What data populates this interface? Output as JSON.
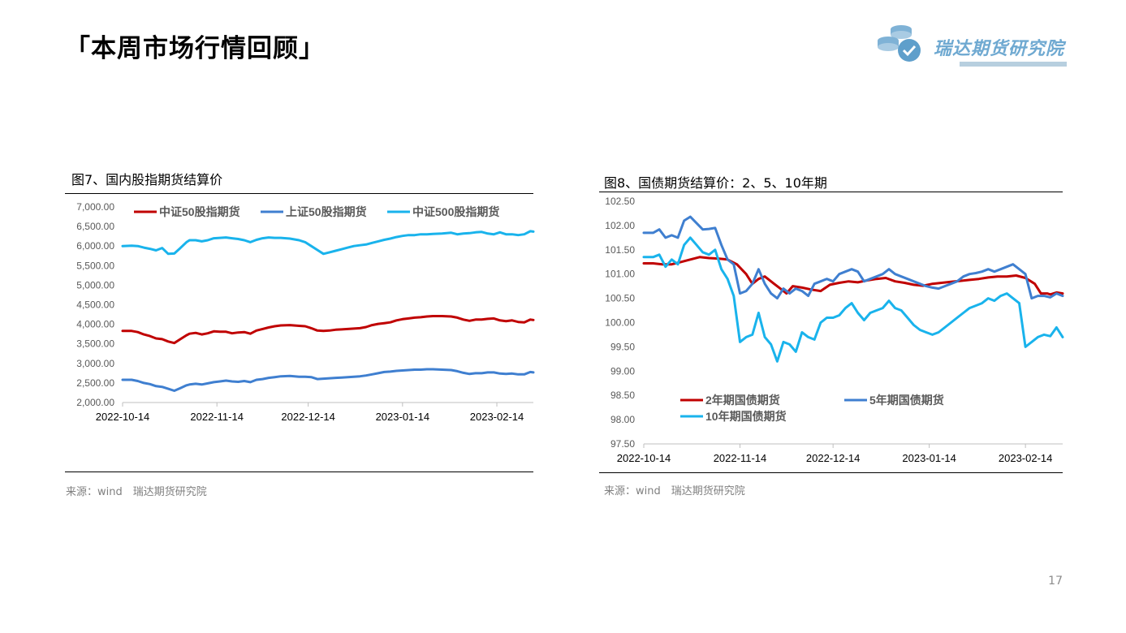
{
  "header": {
    "title": "「本周市场行情回顾」",
    "logo_text": "瑞达期货研究院"
  },
  "page_number": "17",
  "colors": {
    "red": "#c00000",
    "blue": "#3f7fd0",
    "cyan": "#19b3ec",
    "logo": "#6fa9d1"
  },
  "chart_data": [
    {
      "type": "line",
      "title": "图7、国内股指期货结算价",
      "source": "来源：wind　瑞达期货研究院",
      "ylim": [
        2000,
        7000
      ],
      "yticks": [
        "2,000.00",
        "2,500.00",
        "3,000.00",
        "3,500.00",
        "4,000.00",
        "4,500.00",
        "5,000.00",
        "5,500.00",
        "6,000.00",
        "6,500.00",
        "7,000.00"
      ],
      "xlim": [
        0,
        135
      ],
      "xticks": [
        {
          "pos": 0,
          "label": "2022-10-14"
        },
        {
          "pos": 31,
          "label": "2022-11-14"
        },
        {
          "pos": 61,
          "label": "2022-12-14"
        },
        {
          "pos": 92,
          "label": "2023-01-14"
        },
        {
          "pos": 123,
          "label": "2023-02-14"
        }
      ],
      "legend": {
        "placement": "top"
      },
      "series": [
        {
          "name": "中证50股指期货",
          "color": "#c00000",
          "x": [
            0,
            3,
            5,
            7,
            9,
            11,
            13,
            15,
            17,
            19,
            21,
            22,
            24,
            26,
            28,
            30,
            32,
            34,
            36,
            38,
            40,
            42,
            44,
            46,
            48,
            50,
            52,
            55,
            58,
            60,
            62,
            64,
            66,
            68,
            70,
            72,
            74,
            76,
            78,
            80,
            82,
            84,
            86,
            88,
            90,
            92,
            94,
            96,
            98,
            100,
            102,
            105,
            108,
            110,
            112,
            114,
            116,
            118,
            120,
            122,
            124,
            126,
            128,
            130,
            132,
            134,
            135
          ],
          "values": [
            3830,
            3830,
            3800,
            3740,
            3700,
            3640,
            3620,
            3560,
            3520,
            3620,
            3720,
            3760,
            3780,
            3740,
            3770,
            3820,
            3810,
            3810,
            3770,
            3790,
            3800,
            3760,
            3840,
            3880,
            3920,
            3950,
            3970,
            3980,
            3960,
            3950,
            3900,
            3840,
            3830,
            3840,
            3860,
            3870,
            3880,
            3890,
            3900,
            3930,
            3980,
            4010,
            4030,
            4050,
            4100,
            4130,
            4150,
            4170,
            4180,
            4200,
            4210,
            4210,
            4200,
            4170,
            4120,
            4090,
            4120,
            4120,
            4140,
            4150,
            4100,
            4080,
            4100,
            4060,
            4050,
            4120,
            4110
          ]
        },
        {
          "name": "上证50股指期货",
          "color": "#3f7fd0",
          "x": [
            0,
            3,
            5,
            7,
            9,
            11,
            13,
            15,
            17,
            19,
            21,
            22,
            24,
            26,
            28,
            30,
            32,
            34,
            36,
            38,
            40,
            42,
            44,
            46,
            48,
            50,
            52,
            55,
            58,
            60,
            62,
            64,
            66,
            68,
            70,
            72,
            74,
            76,
            78,
            80,
            82,
            84,
            86,
            88,
            90,
            92,
            94,
            96,
            98,
            100,
            102,
            105,
            108,
            110,
            112,
            114,
            116,
            118,
            120,
            122,
            124,
            126,
            128,
            130,
            132,
            134,
            135
          ],
          "values": [
            2580,
            2580,
            2550,
            2500,
            2470,
            2420,
            2400,
            2350,
            2300,
            2370,
            2440,
            2460,
            2480,
            2460,
            2490,
            2520,
            2540,
            2560,
            2540,
            2530,
            2550,
            2520,
            2580,
            2600,
            2630,
            2650,
            2670,
            2680,
            2660,
            2660,
            2650,
            2600,
            2610,
            2620,
            2630,
            2640,
            2650,
            2660,
            2670,
            2690,
            2720,
            2750,
            2780,
            2790,
            2810,
            2820,
            2830,
            2840,
            2840,
            2850,
            2850,
            2840,
            2830,
            2800,
            2760,
            2730,
            2750,
            2750,
            2770,
            2770,
            2740,
            2730,
            2740,
            2720,
            2720,
            2780,
            2770
          ]
        },
        {
          "name": "中证500股指期货",
          "color": "#19b3ec",
          "x": [
            0,
            3,
            5,
            7,
            9,
            11,
            13,
            15,
            17,
            19,
            21,
            22,
            24,
            26,
            28,
            30,
            32,
            34,
            36,
            38,
            40,
            42,
            44,
            46,
            48,
            50,
            52,
            55,
            58,
            60,
            62,
            64,
            66,
            68,
            70,
            72,
            74,
            76,
            78,
            80,
            82,
            84,
            86,
            88,
            90,
            92,
            94,
            96,
            98,
            100,
            102,
            105,
            108,
            110,
            112,
            114,
            116,
            118,
            120,
            122,
            124,
            126,
            128,
            130,
            132,
            134,
            135
          ],
          "values": [
            6000,
            6010,
            6000,
            5960,
            5930,
            5890,
            5950,
            5800,
            5810,
            5950,
            6100,
            6150,
            6150,
            6120,
            6150,
            6200,
            6210,
            6220,
            6200,
            6180,
            6150,
            6100,
            6160,
            6200,
            6220,
            6210,
            6210,
            6190,
            6150,
            6100,
            6000,
            5900,
            5800,
            5840,
            5880,
            5920,
            5960,
            6000,
            6020,
            6040,
            6080,
            6120,
            6160,
            6190,
            6230,
            6260,
            6280,
            6280,
            6300,
            6300,
            6310,
            6320,
            6340,
            6300,
            6320,
            6330,
            6350,
            6360,
            6320,
            6300,
            6350,
            6300,
            6300,
            6280,
            6300,
            6380,
            6370
          ]
        }
      ]
    },
    {
      "type": "line",
      "title": "图8、国债期货结算价：2、5、10年期",
      "source": "来源：wind　瑞达期货研究院",
      "ylim": [
        97.5,
        102.5
      ],
      "yticks": [
        "97.50",
        "98.00",
        "98.50",
        "99.00",
        "99.50",
        "100.00",
        "100.50",
        "101.00",
        "101.50",
        "102.00",
        "102.50"
      ],
      "xlim": [
        0,
        135
      ],
      "xticks": [
        {
          "pos": 0,
          "label": "2022-10-14"
        },
        {
          "pos": 31,
          "label": "2022-11-14"
        },
        {
          "pos": 61,
          "label": "2022-12-14"
        },
        {
          "pos": 92,
          "label": "2023-01-14"
        },
        {
          "pos": 123,
          "label": "2023-02-14"
        }
      ],
      "legend": {
        "placement": "bottom-left"
      },
      "series": [
        {
          "name": "2年期国债期货",
          "color": "#c00000",
          "x": [
            0,
            3,
            6,
            9,
            12,
            15,
            18,
            21,
            24,
            27,
            30,
            33,
            35,
            37,
            39,
            42,
            44,
            46,
            48,
            51,
            54,
            57,
            60,
            63,
            66,
            69,
            72,
            75,
            78,
            81,
            84,
            87,
            90,
            93,
            96,
            99,
            102,
            105,
            108,
            111,
            114,
            117,
            120,
            123,
            126,
            128,
            130,
            131,
            133,
            135
          ],
          "values": [
            101.22,
            101.22,
            101.2,
            101.2,
            101.25,
            101.3,
            101.35,
            101.33,
            101.32,
            101.3,
            101.2,
            101.0,
            100.8,
            100.9,
            100.95,
            100.8,
            100.7,
            100.6,
            100.75,
            100.72,
            100.68,
            100.65,
            100.78,
            100.82,
            100.85,
            100.83,
            100.87,
            100.9,
            100.92,
            100.85,
            100.82,
            100.78,
            100.76,
            100.8,
            100.82,
            100.84,
            100.86,
            100.88,
            100.9,
            100.93,
            100.95,
            100.95,
            100.97,
            100.92,
            100.8,
            100.6,
            100.6,
            100.58,
            100.62,
            100.6
          ]
        },
        {
          "name": "5年期国债期货",
          "color": "#3f7fd0",
          "x": [
            0,
            3,
            5,
            7,
            9,
            11,
            13,
            15,
            17,
            19,
            21,
            23,
            25,
            27,
            29,
            31,
            33,
            35,
            37,
            39,
            41,
            43,
            45,
            47,
            49,
            51,
            53,
            55,
            57,
            59,
            61,
            63,
            65,
            67,
            69,
            71,
            73,
            75,
            77,
            79,
            81,
            83,
            85,
            87,
            89,
            91,
            93,
            95,
            97,
            99,
            101,
            103,
            105,
            107,
            109,
            111,
            113,
            115,
            117,
            119,
            121,
            123,
            125,
            127,
            129,
            131,
            133,
            135
          ],
          "values": [
            101.85,
            101.85,
            101.92,
            101.75,
            101.8,
            101.75,
            102.1,
            102.18,
            102.05,
            101.92,
            101.93,
            101.95,
            101.6,
            101.3,
            101.2,
            100.6,
            100.65,
            100.8,
            101.1,
            100.8,
            100.6,
            100.5,
            100.7,
            100.6,
            100.7,
            100.65,
            100.55,
            100.8,
            100.85,
            100.9,
            100.85,
            101.0,
            101.05,
            101.1,
            101.05,
            100.85,
            100.9,
            100.95,
            101.0,
            101.1,
            101.0,
            100.95,
            100.9,
            100.85,
            100.8,
            100.75,
            100.72,
            100.7,
            100.75,
            100.8,
            100.85,
            100.95,
            101.0,
            101.02,
            101.05,
            101.1,
            101.05,
            101.1,
            101.15,
            101.2,
            101.1,
            101.0,
            100.5,
            100.55,
            100.55,
            100.52,
            100.6,
            100.55
          ]
        },
        {
          "name": "10年期国债期货",
          "color": "#19b3ec",
          "x": [
            0,
            3,
            5,
            7,
            9,
            11,
            13,
            15,
            17,
            19,
            21,
            23,
            25,
            27,
            29,
            31,
            33,
            35,
            37,
            39,
            41,
            43,
            45,
            47,
            49,
            51,
            53,
            55,
            57,
            59,
            61,
            63,
            65,
            67,
            69,
            71,
            73,
            75,
            77,
            79,
            81,
            83,
            85,
            87,
            89,
            91,
            93,
            95,
            97,
            99,
            101,
            103,
            105,
            107,
            109,
            111,
            113,
            115,
            117,
            119,
            121,
            123,
            125,
            127,
            129,
            131,
            133,
            135
          ],
          "values": [
            101.35,
            101.35,
            101.4,
            101.15,
            101.3,
            101.2,
            101.6,
            101.75,
            101.6,
            101.45,
            101.4,
            101.5,
            101.1,
            100.9,
            100.55,
            99.6,
            99.7,
            99.75,
            100.2,
            99.7,
            99.55,
            99.2,
            99.6,
            99.55,
            99.4,
            99.8,
            99.7,
            99.65,
            100.0,
            100.1,
            100.1,
            100.15,
            100.3,
            100.4,
            100.2,
            100.05,
            100.2,
            100.25,
            100.3,
            100.45,
            100.3,
            100.25,
            100.1,
            99.95,
            99.85,
            99.8,
            99.75,
            99.8,
            99.9,
            100.0,
            100.1,
            100.2,
            100.3,
            100.35,
            100.4,
            100.5,
            100.45,
            100.55,
            100.6,
            100.5,
            100.4,
            99.5,
            99.6,
            99.7,
            99.75,
            99.72,
            99.9,
            99.7
          ]
        }
      ]
    }
  ]
}
